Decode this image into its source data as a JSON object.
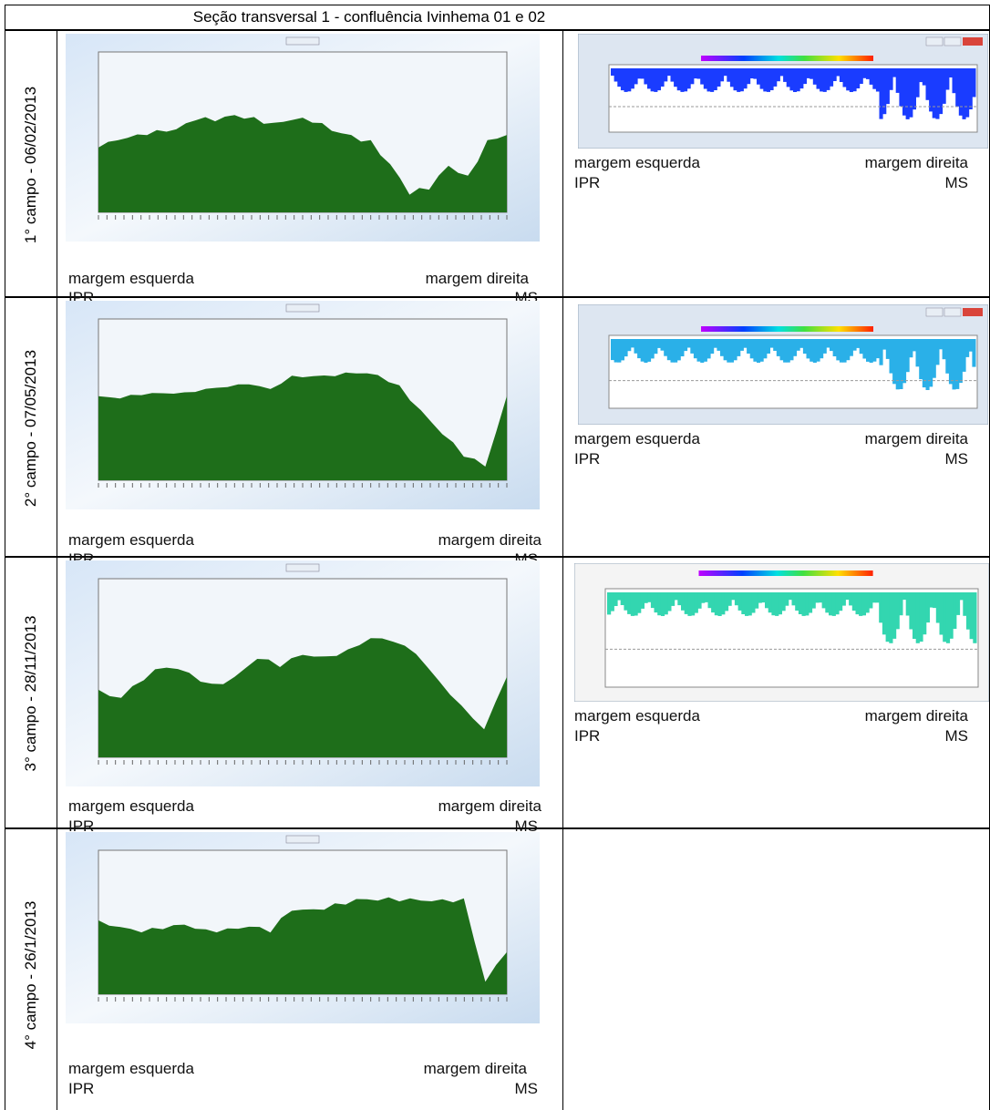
{
  "title": "Seção transversal 1 -  confluência Ivinhema 01 e 02",
  "rows": [
    {
      "label": "1° campo - 06/02/2013",
      "left": {
        "left_bank": "margem esquerda",
        "right_bank": "margem direita",
        "left_state": "IPR",
        "right_state": "MS"
      },
      "right": {
        "left_bank": "margem esquerda",
        "right_bank": "margem direita",
        "left_state": "IPR",
        "right_state": "MS"
      }
    },
    {
      "label": "2° campo - 07/05/2013",
      "left": {
        "left_bank": "margem esquerda",
        "right_bank": "margem direita",
        "left_state": "IPR",
        "right_state": "MS"
      },
      "right": {
        "left_bank": "margem esquerda",
        "right_bank": "margem direita",
        "left_state": "IPR",
        "right_state": "MS"
      }
    },
    {
      "label": "3° campo - 28/11/2013",
      "left": {
        "left_bank": "margem esquerda",
        "right_bank": "margem direita",
        "left_state": "IPR",
        "right_state": "MS"
      },
      "right": {
        "left_bank": "margem esquerda",
        "right_bank": "margem direita",
        "left_state": "IPR",
        "right_state": "MS"
      }
    },
    {
      "label": "4° campo - 26/1/2013",
      "left": {
        "left_bank": "margem esquerda",
        "right_bank": "margem direita",
        "left_state": "IPR",
        "right_state": "MS"
      }
    }
  ]
}
